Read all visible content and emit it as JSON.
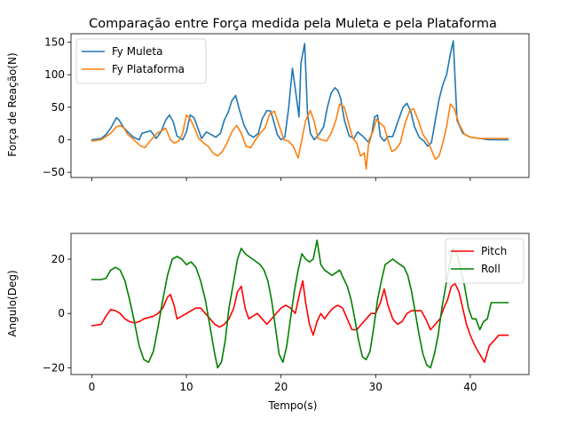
{
  "chart_data": [
    {
      "type": "line",
      "title": "Comparação entre Força medida pela Muleta e pela Plataforma",
      "xlabel": "",
      "ylabel": "Força de Reação(N)",
      "xlim": [
        -2.2,
        46.2
      ],
      "ylim": [
        -58,
        163
      ],
      "xticks": [
        0,
        10,
        20,
        30,
        40
      ],
      "yticks": [
        -50,
        0,
        50,
        100,
        150
      ],
      "show_xtick_labels": false,
      "grid": false,
      "legend_position": "upper-left",
      "series": [
        {
          "name": "Fy Muleta",
          "color": "#1f77b4",
          "x": [
            0,
            1,
            1.5,
            2,
            2.6,
            2.9,
            3.3,
            3.8,
            4.4,
            5,
            5.3,
            5.8,
            6.2,
            6.8,
            7.3,
            7.8,
            8.2,
            8.6,
            9,
            9.6,
            10,
            10.4,
            10.8,
            11.2,
            11.6,
            12.1,
            12.6,
            13.1,
            13.6,
            14,
            14.4,
            14.8,
            15.2,
            15.6,
            16.1,
            16.6,
            17.1,
            17.6,
            18,
            18.5,
            18.9,
            19.2,
            19.6,
            20,
            20.4,
            20.8,
            21.2,
            21.6,
            21.9,
            22.1,
            22.5,
            22.8,
            23.1,
            23.5,
            24,
            24.5,
            24.9,
            25.3,
            25.7,
            26,
            26.3,
            26.7,
            27.2,
            27.7,
            28.1,
            28.6,
            29,
            29.3,
            29.6,
            29.9,
            30.2,
            30.5,
            30.9,
            31.3,
            31.8,
            32.4,
            32.9,
            33.3,
            33.7,
            34.1,
            34.6,
            35.1,
            35.5,
            35.9,
            36.3,
            36.7,
            37.1,
            37.5,
            37.9,
            38.2,
            38.6,
            39.2,
            40,
            41,
            42,
            43,
            44
          ],
          "values": [
            0,
            2,
            8,
            18,
            34,
            30,
            20,
            12,
            4,
            0,
            10,
            12,
            14,
            2,
            12,
            30,
            38,
            28,
            6,
            0,
            12,
            38,
            34,
            18,
            2,
            12,
            8,
            4,
            10,
            30,
            42,
            60,
            68,
            46,
            22,
            8,
            4,
            10,
            32,
            45,
            44,
            30,
            8,
            0,
            4,
            48,
            110,
            68,
            35,
            118,
            148,
            40,
            10,
            0,
            8,
            20,
            50,
            72,
            80,
            76,
            64,
            30,
            6,
            2,
            12,
            6,
            0,
            -5,
            10,
            35,
            38,
            5,
            -2,
            5,
            5,
            30,
            50,
            56,
            44,
            20,
            4,
            -2,
            -10,
            -4,
            30,
            62,
            85,
            100,
            132,
            152,
            30,
            10,
            4,
            2,
            0,
            0,
            0
          ]
        },
        {
          "name": "Fy Plataforma",
          "color": "#ff7f0e",
          "x": [
            0,
            1,
            1.5,
            2,
            2.6,
            3,
            3.4,
            3.8,
            4.3,
            4.8,
            5.2,
            5.6,
            6,
            6.4,
            6.9,
            7.4,
            7.8,
            8.3,
            8.7,
            9.2,
            9.6,
            10,
            10.4,
            10.8,
            11.3,
            11.8,
            12.3,
            12.8,
            13.3,
            13.8,
            14.3,
            14.8,
            15.3,
            15.8,
            16.3,
            16.8,
            17.3,
            17.8,
            18.3,
            18.8,
            19.3,
            19.8,
            20.3,
            20.8,
            21.3,
            21.8,
            22.2,
            22.6,
            23.1,
            23.5,
            23.9,
            24.3,
            24.8,
            25.3,
            25.8,
            26.2,
            26.7,
            27.2,
            27.6,
            28,
            28.4,
            28.8,
            29,
            29.3,
            29.7,
            30.1,
            30.5,
            30.9,
            31.3,
            31.7,
            32.1,
            32.6,
            33.1,
            33.6,
            34,
            34.5,
            35,
            35.4,
            35.8,
            36.3,
            36.7,
            37.1,
            37.5,
            37.9,
            38.3,
            38.8,
            39.4,
            40,
            41,
            42,
            43,
            44
          ],
          "values": [
            -2,
            0,
            5,
            10,
            20,
            22,
            18,
            8,
            2,
            -5,
            -10,
            -12,
            -5,
            2,
            10,
            14,
            18,
            0,
            -5,
            -2,
            10,
            38,
            32,
            20,
            2,
            -5,
            -10,
            -20,
            -25,
            -18,
            -5,
            12,
            22,
            10,
            -10,
            -12,
            0,
            10,
            18,
            40,
            44,
            22,
            0,
            -2,
            -10,
            -28,
            0,
            30,
            45,
            28,
            2,
            0,
            -2,
            10,
            30,
            55,
            50,
            22,
            2,
            -5,
            -25,
            -20,
            -45,
            0,
            12,
            32,
            25,
            20,
            0,
            -18,
            -15,
            -5,
            25,
            45,
            48,
            30,
            8,
            0,
            -12,
            -30,
            -25,
            -5,
            20,
            55,
            48,
            25,
            8,
            4,
            2,
            2,
            2,
            2
          ]
        }
      ]
    },
    {
      "type": "line",
      "title": "",
      "xlabel": "Tempo(s)",
      "ylabel": "Angulo(Deg)",
      "xlim": [
        -2.2,
        46.2
      ],
      "ylim": [
        -22.5,
        29.5
      ],
      "xticks": [
        0,
        10,
        20,
        30,
        40
      ],
      "yticks": [
        -20,
        0,
        20
      ],
      "show_xtick_labels": true,
      "grid": false,
      "legend_position": "upper-right",
      "series": [
        {
          "name": "Pitch",
          "color": "#ff0000",
          "x": [
            0,
            1,
            1.5,
            2,
            2.5,
            3,
            3.5,
            4,
            4.5,
            5,
            5.5,
            6,
            6.5,
            7,
            7.5,
            8,
            8.3,
            8.7,
            9,
            9.5,
            10,
            10.5,
            11,
            11.5,
            12,
            12.5,
            13,
            13.5,
            14,
            14.5,
            15,
            15.4,
            15.8,
            16.2,
            16.6,
            17,
            17.5,
            18,
            18.5,
            19,
            19.5,
            20,
            20.5,
            21,
            21.5,
            22,
            22.3,
            22.6,
            23,
            23.4,
            23.8,
            24.2,
            24.6,
            25,
            25.5,
            26,
            26.5,
            27,
            27.5,
            28,
            28.5,
            29,
            29.5,
            30,
            30.5,
            30.9,
            31.3,
            31.8,
            32.3,
            32.8,
            33.3,
            33.8,
            34.3,
            34.8,
            35.3,
            35.8,
            36.3,
            36.8,
            37.2,
            37.6,
            38,
            38.4,
            38.8,
            39.2,
            39.6,
            40,
            40.5,
            41,
            41.5,
            42,
            42.5,
            43,
            44
          ],
          "values": [
            -4.5,
            -4,
            -1,
            1.5,
            1,
            0,
            -2,
            -3,
            -3.5,
            -3,
            -2,
            -1.5,
            -1,
            0,
            2,
            6,
            7,
            3,
            -2,
            -1,
            0,
            1,
            2,
            2,
            0,
            -2,
            -4,
            -5,
            -4,
            -2,
            2,
            8,
            10,
            2,
            -2,
            -1,
            0,
            -2,
            -4,
            -2,
            0,
            2,
            3,
            2,
            0,
            8,
            12,
            4,
            -4,
            -8,
            -3,
            0,
            -2,
            0,
            2,
            3,
            2,
            -2,
            -6,
            -6,
            -4,
            -2,
            0,
            0,
            4,
            9,
            3,
            -2,
            -4,
            -3,
            0,
            1,
            1,
            1,
            -2,
            -6,
            -4,
            -2,
            2,
            5,
            10,
            11,
            8,
            2,
            -4,
            -8,
            -12,
            -15,
            -18,
            -12,
            -10,
            -8,
            -8
          ]
        },
        {
          "name": "Roll",
          "color": "#008000",
          "x": [
            0,
            1,
            1.5,
            2,
            2.5,
            3,
            3.5,
            4,
            4.5,
            5,
            5.5,
            6,
            6.5,
            7,
            7.5,
            8,
            8.5,
            9,
            9.5,
            10,
            10.5,
            11,
            11.5,
            12,
            12.5,
            13,
            13.3,
            13.7,
            14.1,
            14.5,
            15,
            15.4,
            15.8,
            16.2,
            16.6,
            17,
            17.4,
            17.8,
            18.2,
            18.6,
            19,
            19.4,
            19.8,
            20.2,
            20.6,
            21,
            21.4,
            21.8,
            22.2,
            22.6,
            23,
            23.4,
            23.8,
            24.2,
            24.6,
            25,
            25.4,
            25.8,
            26.2,
            26.6,
            27,
            27.4,
            27.8,
            28.2,
            28.6,
            29,
            29.4,
            29.8,
            30.2,
            30.6,
            31,
            31.4,
            31.8,
            32.2,
            32.6,
            33,
            33.4,
            33.8,
            34.2,
            34.6,
            35,
            35.4,
            35.8,
            36.2,
            36.6,
            37,
            37.4,
            37.8,
            38.2,
            38.6,
            39,
            39.4,
            39.8,
            40.2,
            40.6,
            41,
            41.4,
            41.8,
            42.2,
            42.6,
            43,
            44
          ],
          "values": [
            12.5,
            12.5,
            13,
            16,
            17,
            16,
            12,
            5,
            -3,
            -12,
            -17,
            -18,
            -14,
            -5,
            5,
            14,
            20,
            21,
            20,
            18,
            19,
            17,
            12,
            5,
            -5,
            -15,
            -20,
            -18,
            -10,
            2,
            12,
            20,
            24,
            22,
            21,
            20,
            19,
            18,
            16,
            12,
            5,
            -5,
            -15,
            -18,
            -12,
            -2,
            8,
            16,
            22,
            20,
            19,
            20,
            27,
            18,
            16,
            15,
            14,
            15,
            16,
            13,
            10,
            5,
            -2,
            -10,
            -16,
            -17,
            -14,
            -5,
            5,
            12,
            18,
            19,
            20,
            19,
            18,
            17,
            14,
            8,
            0,
            -8,
            -15,
            -19,
            -20,
            -15,
            -8,
            2,
            10,
            18,
            24,
            22,
            16,
            10,
            2,
            -2,
            -2,
            -6,
            -3,
            -2,
            4,
            4,
            4,
            4
          ]
        }
      ]
    }
  ]
}
